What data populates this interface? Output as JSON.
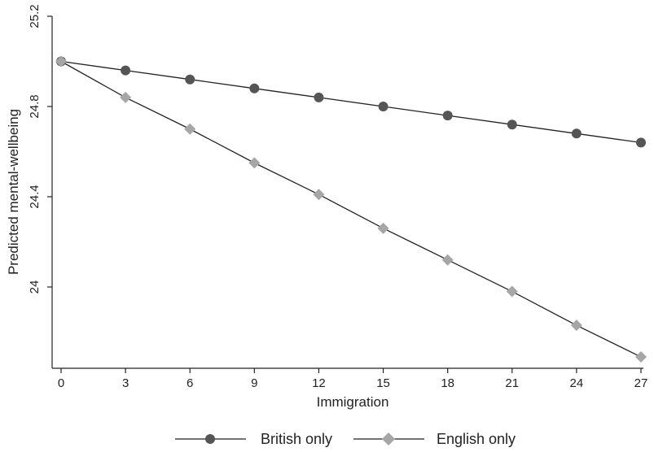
{
  "chart_data": {
    "type": "line",
    "title": "",
    "xlabel": "Immigration",
    "ylabel": "Predicted mental-wellbeing",
    "x": [
      0,
      3,
      6,
      9,
      12,
      15,
      18,
      21,
      24,
      27
    ],
    "xticks": [
      "0",
      "3",
      "6",
      "9",
      "12",
      "15",
      "18",
      "21",
      "24",
      "27"
    ],
    "yticks": [
      24,
      24.4,
      24.8,
      25.2
    ],
    "ytick_labels": [
      "24",
      "24.4",
      "24.8",
      "25.2"
    ],
    "xlim": [
      0,
      27
    ],
    "ylim": [
      23.9,
      25.2
    ],
    "grid": false,
    "legend_position": "bottom",
    "series": [
      {
        "name": "British only",
        "marker": "circle",
        "color": "#555555",
        "values": [
          25.0,
          24.96,
          24.92,
          24.88,
          24.84,
          24.8,
          24.76,
          24.72,
          24.68,
          24.64
        ]
      },
      {
        "name": "English only",
        "marker": "diamond",
        "color": "#a6a6a6",
        "values": [
          25.0,
          24.84,
          24.7,
          24.55,
          24.41,
          24.26,
          24.12,
          23.98,
          23.83,
          23.69
        ]
      }
    ]
  }
}
